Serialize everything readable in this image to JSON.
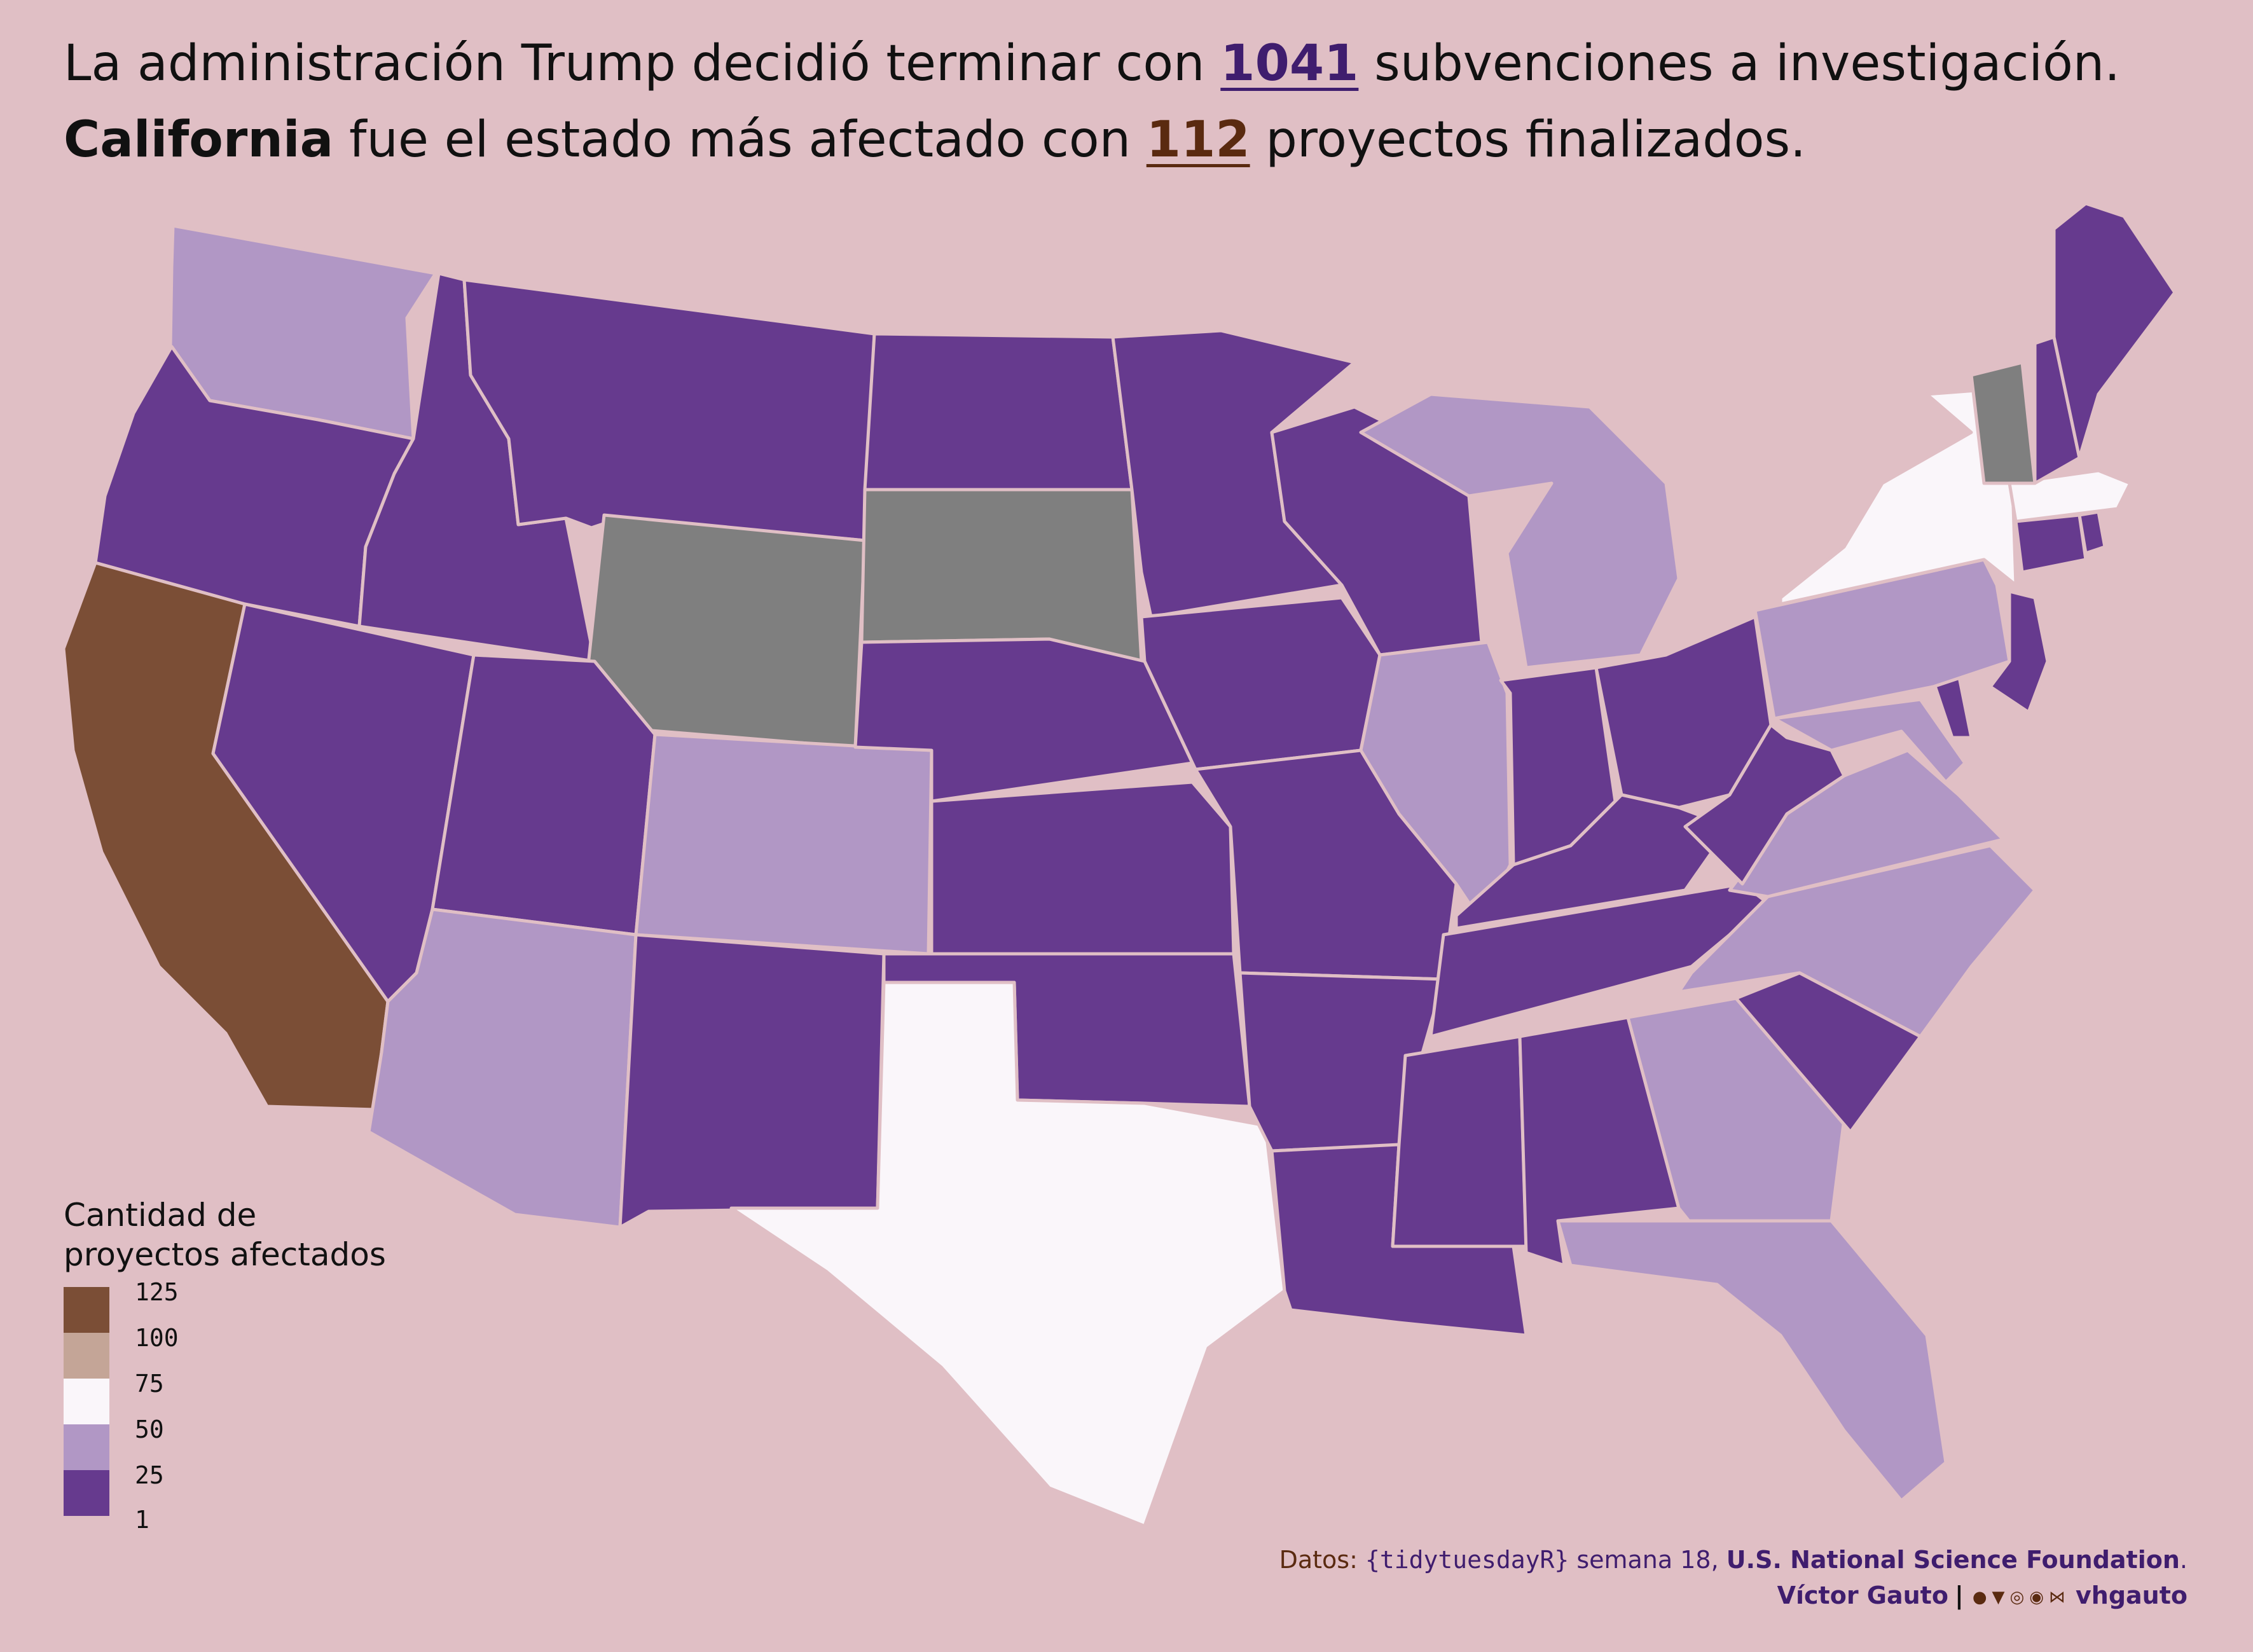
{
  "title": {
    "line1_pre": "La administración Trump decidió terminar con ",
    "line1_num": "1041",
    "line1_post": " subvenciones a investigación.",
    "line2_state": "California",
    "line2_pre": " fue el estado más afectado con ",
    "line2_num": "112",
    "line2_post": " proyectos finalizados."
  },
  "colors": {
    "background": "#e0bfc5",
    "bin_1_25": "#663a8e",
    "bin_25_50": "#b197c5",
    "bin_50_75": "#faf6fa",
    "bin_75_100": "#c4a597",
    "bin_100_125": "#7b4e36",
    "no_data": "#7f7f7f",
    "accent_purple": "#3f1d6e",
    "accent_brown": "#5a2a10"
  },
  "legend": {
    "title": "Cantidad de\nproyectos afectados",
    "ticks": [
      "125",
      "100",
      "75",
      "50",
      "25",
      "1"
    ]
  },
  "states": [
    {
      "name": "Washington",
      "bin": "25-50"
    },
    {
      "name": "Oregon",
      "bin": "1-25"
    },
    {
      "name": "California",
      "bin": "100-125",
      "value": 112
    },
    {
      "name": "Idaho",
      "bin": "1-25"
    },
    {
      "name": "Nevada",
      "bin": "1-25"
    },
    {
      "name": "Montana",
      "bin": "1-25"
    },
    {
      "name": "Wyoming",
      "bin": "none"
    },
    {
      "name": "Utah",
      "bin": "1-25"
    },
    {
      "name": "Arizona",
      "bin": "25-50"
    },
    {
      "name": "Colorado",
      "bin": "25-50"
    },
    {
      "name": "New Mexico",
      "bin": "1-25"
    },
    {
      "name": "North Dakota",
      "bin": "1-25"
    },
    {
      "name": "South Dakota",
      "bin": "none"
    },
    {
      "name": "Nebraska",
      "bin": "1-25"
    },
    {
      "name": "Kansas",
      "bin": "1-25"
    },
    {
      "name": "Oklahoma",
      "bin": "1-25"
    },
    {
      "name": "Texas",
      "bin": "50-75"
    },
    {
      "name": "Minnesota",
      "bin": "1-25"
    },
    {
      "name": "Iowa",
      "bin": "1-25"
    },
    {
      "name": "Missouri",
      "bin": "1-25"
    },
    {
      "name": "Arkansas",
      "bin": "1-25"
    },
    {
      "name": "Louisiana",
      "bin": "1-25"
    },
    {
      "name": "Wisconsin",
      "bin": "1-25"
    },
    {
      "name": "Illinois",
      "bin": "25-50"
    },
    {
      "name": "Michigan",
      "bin": "25-50"
    },
    {
      "name": "Indiana",
      "bin": "1-25"
    },
    {
      "name": "Ohio",
      "bin": "1-25"
    },
    {
      "name": "Kentucky",
      "bin": "1-25"
    },
    {
      "name": "Tennessee",
      "bin": "1-25"
    },
    {
      "name": "Mississippi",
      "bin": "1-25"
    },
    {
      "name": "Alabama",
      "bin": "1-25"
    },
    {
      "name": "Georgia",
      "bin": "25-50"
    },
    {
      "name": "Florida",
      "bin": "25-50"
    },
    {
      "name": "South Carolina",
      "bin": "1-25"
    },
    {
      "name": "North Carolina",
      "bin": "25-50"
    },
    {
      "name": "Virginia",
      "bin": "25-50"
    },
    {
      "name": "West Virginia",
      "bin": "1-25"
    },
    {
      "name": "Maryland",
      "bin": "25-50"
    },
    {
      "name": "Delaware",
      "bin": "1-25"
    },
    {
      "name": "Pennsylvania",
      "bin": "25-50"
    },
    {
      "name": "New Jersey",
      "bin": "1-25"
    },
    {
      "name": "New York",
      "bin": "50-75"
    },
    {
      "name": "Connecticut",
      "bin": "1-25"
    },
    {
      "name": "Rhode Island",
      "bin": "1-25"
    },
    {
      "name": "Massachusetts",
      "bin": "50-75"
    },
    {
      "name": "Vermont",
      "bin": "none"
    },
    {
      "name": "New Hampshire",
      "bin": "1-25"
    },
    {
      "name": "Maine",
      "bin": "1-25"
    }
  ],
  "caption": {
    "data_label": "Datos: ",
    "package": "{tidytuesdayR}",
    "week": " semana 18, ",
    "source": "U.S. National Science Foundation",
    "period": ".",
    "author": "Víctor Gauto",
    "separator": "|",
    "handle": "vhgauto",
    "icons": [
      "github-icon",
      "twitter-icon",
      "instagram-icon",
      "mastodon-icon",
      "bluesky-icon"
    ]
  }
}
